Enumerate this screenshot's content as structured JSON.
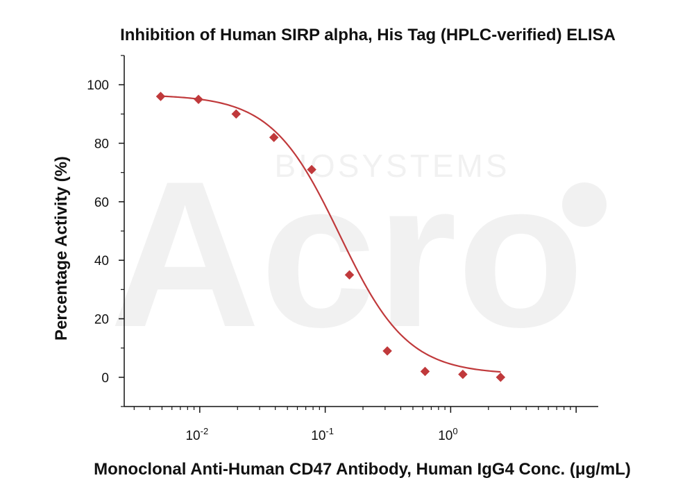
{
  "chart_data": {
    "type": "scatter",
    "title": "Inhibition of Human SIRP alpha, His Tag (HPLC-verified) ELISA",
    "xlabel": "Monoclonal Anti-Human CD47 Antibody, Human IgG4 Conc. (μg/mL)",
    "ylabel": "Percentage Activity (%)",
    "x_scale": "log10",
    "xlim": [
      0.0025,
      15
    ],
    "ylim": [
      -10,
      110
    ],
    "y_ticks": [
      0,
      20,
      40,
      60,
      80,
      100
    ],
    "x_tick_labels": [
      {
        "value": 0.01,
        "base": "10",
        "exp": "-2"
      },
      {
        "value": 0.1,
        "base": "10",
        "exp": "-1"
      },
      {
        "value": 1,
        "base": "10",
        "exp": "0"
      }
    ],
    "grid": false,
    "legend": "none",
    "points": [
      {
        "x": 0.00488,
        "y": 96
      },
      {
        "x": 0.00977,
        "y": 95
      },
      {
        "x": 0.0195,
        "y": 90
      },
      {
        "x": 0.039,
        "y": 82
      },
      {
        "x": 0.078,
        "y": 71
      },
      {
        "x": 0.156,
        "y": 35
      },
      {
        "x": 0.3125,
        "y": 9
      },
      {
        "x": 0.625,
        "y": 2
      },
      {
        "x": 1.25,
        "y": 1
      },
      {
        "x": 2.5,
        "y": 0
      }
    ],
    "fit": {
      "model": "four-parameter logistic",
      "bottom": 1,
      "top": 96.6,
      "ic50": 0.13,
      "hill": 1.6
    },
    "colors": {
      "series": "#c0393b",
      "axis": "#111111",
      "text": "#111111"
    },
    "watermark": "Acro BIOSYSTEMS"
  }
}
